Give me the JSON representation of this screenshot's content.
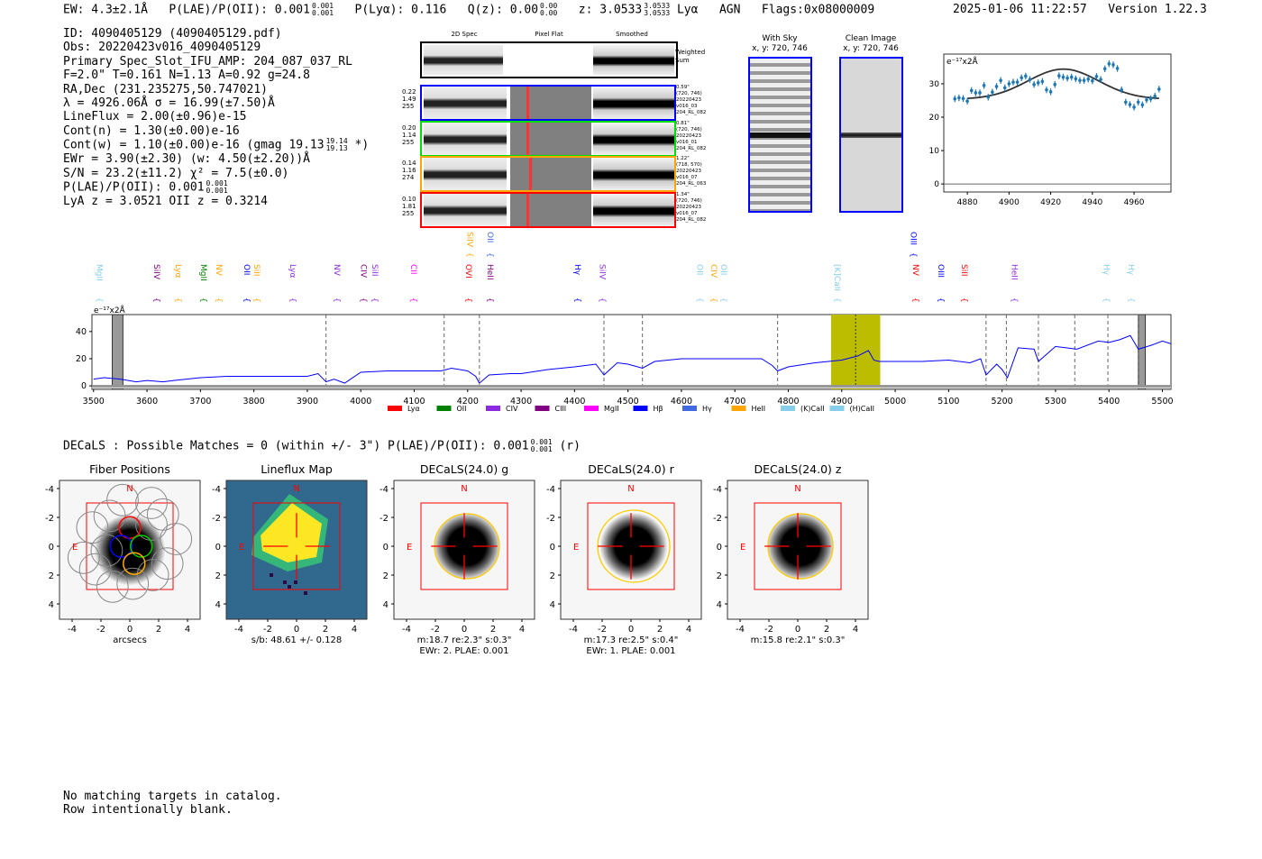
{
  "header": {
    "ew": "EW: 4.3±2.1Å",
    "plae_label": "P(LAE)/P(OII): 0.001",
    "plae_hi": "0.001",
    "plae_lo": "0.001",
    "plya": "P(Lyα): 0.116",
    "qz": "Q(z): 0.00",
    "qz_hi": "0.00",
    "qz_lo": "0.00",
    "z": "z: 3.0533",
    "z_hi": "3.0533",
    "z_lo": "3.0533",
    "line": "Lyα",
    "agn": "AGN",
    "flags": "Flags:0x08000009",
    "datetime": "2025-01-06 11:22:57",
    "version": "Version 1.22.3"
  },
  "info": {
    "lines": [
      "ID: 4090405129 (4090405129.pdf)",
      "Obs: 20220423v016_4090405129",
      "Primary Spec_Slot_IFU_AMP: 204_087_037_RL",
      "F=2.0\"  T=0.161  N=1.13  A=0.92  g=24.8",
      "RA,Dec (231.235275,50.747021)",
      "λ = 4926.06Å   σ = 16.99(±7.50)Å",
      "LineFlux = 2.00(±0.96)e-15",
      "Cont(n) = 1.30(±0.00)e-16"
    ],
    "contw": "Cont(w) = 1.10(±0.00)e-16 (gmag 19.13",
    "contw_hi": "19.14",
    "contw_lo": "19.13",
    "contw_end": "*)",
    "lines2": [
      "EWr = 3.90(±2.30)  (w: 4.50(±2.20))Å",
      "S/N = 23.2(±11.2)  χ² = 7.5(±0.0)"
    ],
    "plae": "P(LAE)/P(OII): 0.001",
    "plae_hi": "0.001",
    "plae_lo": "0.001",
    "z": "LyA z = 3.0521   OII z = 0.3214"
  },
  "spec2d": {
    "col_titles": [
      "2D Spec",
      "Pixel Flat",
      "Smoothed"
    ],
    "weighted": "Weighted Sum",
    "rows": [
      {
        "color": "#0000ff",
        "left": [
          "0.22",
          "1.49",
          "255"
        ],
        "right": [
          "0.59\"",
          "(720, 746)",
          "20220423",
          "v016_03",
          "204_RL_082"
        ]
      },
      {
        "color": "#00dd00",
        "left": [
          "0.20",
          "1.14",
          "255"
        ],
        "right": [
          "0.81\"",
          "(720, 746)",
          "20220423",
          "v016_01",
          "204_RL_082"
        ]
      },
      {
        "color": "#ffa500",
        "left": [
          "0.14",
          "1.16",
          "274"
        ],
        "right": [
          "1.22\"",
          "(718, 570)",
          "20220423",
          "v016_07",
          "204_RL_063"
        ]
      },
      {
        "color": "#ff0000",
        "left": [
          "0.10",
          "1.81",
          "255"
        ],
        "right": [
          "1.34\"",
          "(720, 746)",
          "20220423",
          "v016_07",
          "204_RL_082"
        ]
      }
    ]
  },
  "sky": {
    "with_title": "With Sky",
    "with_xy": "x, y: 720, 746",
    "clean_title": "Clean Image",
    "clean_xy": "x, y: 720, 746"
  },
  "chart_data": [
    {
      "type": "scatter",
      "title": "",
      "ylabel": "e⁻¹⁷x2Å",
      "xlim": [
        4868.7,
        4977.7
      ],
      "ylim": [
        -2.4,
        38.9
      ],
      "xticks": [
        4880,
        4900,
        4920,
        4940,
        4960
      ],
      "yticks": [
        0,
        10,
        20,
        30
      ],
      "x_start": 4874,
      "x_step": 2,
      "values": [
        25.5,
        25.8,
        25.6,
        24.8,
        28,
        27.3,
        27.3,
        29.5,
        26,
        27.5,
        29.2,
        31,
        28.8,
        30,
        30.5,
        30.5,
        31.8,
        32.3,
        31.3,
        29.8,
        30.3,
        30.7,
        28.2,
        27.6,
        29.8,
        32.4,
        32,
        31.7,
        32,
        31.5,
        31,
        31,
        31.4,
        30.9,
        32.2,
        31.3,
        34.5,
        36,
        35.7,
        34.6,
        28.2,
        24.5,
        23.8,
        23,
        24.5,
        23.7,
        25.2,
        25.5,
        26.3,
        28.4
      ],
      "fit": {
        "center": 4926.06,
        "sigma": 16.99,
        "amp": 9.0,
        "base": 25.4,
        "range": [
          4880,
          4972
        ]
      }
    },
    {
      "type": "line",
      "ylabel": "e⁻¹⁷x2Å",
      "xlim": [
        3497,
        5516
      ],
      "ylim": [
        -2.6,
        52.5
      ],
      "xticks": [
        3500,
        3600,
        3700,
        3800,
        3900,
        4000,
        4100,
        4200,
        4300,
        4400,
        4500,
        4600,
        4700,
        4800,
        4900,
        5000,
        5100,
        5200,
        5300,
        5400,
        5500
      ],
      "yticks": [
        0,
        20,
        40
      ],
      "x": [
        3500,
        3520,
        3550,
        3580,
        3600,
        3630,
        3650,
        3700,
        3750,
        3800,
        3850,
        3900,
        3920,
        3935,
        3950,
        3970,
        4000,
        4050,
        4100,
        4150,
        4170,
        4200,
        4215,
        4222,
        4240,
        4280,
        4300,
        4350,
        4400,
        4440,
        4455,
        4480,
        4500,
        4527,
        4550,
        4600,
        4650,
        4700,
        4750,
        4770,
        4780,
        4800,
        4850,
        4900,
        4930,
        4950,
        4960,
        4970,
        5000,
        5050,
        5100,
        5140,
        5160,
        5170,
        5190,
        5200,
        5210,
        5230,
        5260,
        5268,
        5300,
        5340,
        5380,
        5400,
        5420,
        5440,
        5455,
        5480,
        5500,
        5516
      ],
      "values": [
        5,
        6,
        5,
        3,
        4,
        3,
        4,
        6,
        7,
        7,
        7,
        7,
        9,
        3,
        5,
        2,
        10,
        11,
        11,
        11,
        13,
        11,
        7,
        2,
        8,
        9,
        9,
        12,
        14,
        16,
        8,
        17,
        16,
        13,
        18,
        20,
        20,
        20,
        20,
        15,
        11,
        14,
        17,
        19,
        22,
        26,
        19,
        18,
        18,
        18,
        19,
        17,
        20,
        8,
        16,
        12,
        6,
        28,
        27,
        18,
        29,
        27,
        33,
        32,
        34,
        37,
        27,
        30,
        33,
        31
      ],
      "highlight": [
        4880,
        4972
      ],
      "masked": [
        [
          3535,
          3555
        ],
        [
          5455,
          5468
        ]
      ],
      "dashed": [
        3935,
        4156,
        4222,
        4455,
        4527,
        4780,
        5170,
        5208,
        5268,
        5336,
        5398,
        5455
      ],
      "dotted": [
        4926
      ]
    }
  ],
  "lines_labels": [
    {
      "n": "MgII",
      "w": 3505,
      "c": "#87ceeb",
      "r": 0
    },
    {
      "n": "SiIV",
      "w": 3612,
      "c": "#800080",
      "r": 0
    },
    {
      "n": "Lyα",
      "w": 3652,
      "c": "#ffa500",
      "r": 0
    },
    {
      "n": "MgII",
      "w": 3699,
      "c": "#008000",
      "r": 0
    },
    {
      "n": "NV",
      "w": 3728,
      "c": "#ffa500",
      "r": 0
    },
    {
      "n": "OII",
      "w": 3780,
      "c": "#0000ff",
      "r": 0
    },
    {
      "n": "SiII",
      "w": 3797,
      "c": "#ffa500",
      "r": 0
    },
    {
      "n": "Lyα",
      "w": 3866,
      "c": "#8a2be2",
      "r": 0
    },
    {
      "n": "NV",
      "w": 3949,
      "c": "#8a2be2",
      "r": 0
    },
    {
      "n": "CIV",
      "w": 3999,
      "c": "#800080",
      "r": 0
    },
    {
      "n": "SiII",
      "w": 4020,
      "c": "#8a2be2",
      "r": 0
    },
    {
      "n": "CII",
      "w": 4092,
      "c": "#ff00ff",
      "r": 0
    },
    {
      "n": "OVI",
      "w": 4195,
      "c": "#ff0000",
      "r": 0
    },
    {
      "n": "HeII",
      "w": 4236,
      "c": "#800080",
      "r": 0
    },
    {
      "n": "Hγ",
      "w": 4399,
      "c": "#0000ff",
      "r": 0
    },
    {
      "n": "SiIV",
      "w": 4446,
      "c": "#8a2be2",
      "r": 0
    },
    {
      "n": "OII",
      "w": 4628,
      "c": "#87ceeb",
      "r": 0
    },
    {
      "n": "CIV",
      "w": 4654,
      "c": "#ffa500",
      "r": 0
    },
    {
      "n": "OII",
      "w": 4672,
      "c": "#87ceeb",
      "r": 0
    },
    {
      "n": "[K]CaII",
      "w": 4885,
      "c": "#87ceeb",
      "r": 0
    },
    {
      "n": "NV",
      "w": 5032,
      "c": "#ff0000",
      "r": 0
    },
    {
      "n": "OIII",
      "w": 5079,
      "c": "#0000ff",
      "r": 0
    },
    {
      "n": "SiII",
      "w": 5123,
      "c": "#ff0000",
      "r": 0
    },
    {
      "n": "HeII",
      "w": 5217,
      "c": "#8a2be2",
      "r": 0
    },
    {
      "n": "Hγ",
      "w": 5389,
      "c": "#87ceeb",
      "r": 0
    },
    {
      "n": "Hγ",
      "w": 5435,
      "c": "#87ceeb",
      "r": 0
    },
    {
      "n": "SiIV",
      "w": 4198,
      "c": "#ffa500",
      "r": 1
    },
    {
      "n": "OII",
      "w": 4236,
      "c": "#4169e1",
      "r": 1
    },
    {
      "n": "OIII",
      "w": 5028,
      "c": "#0000ff",
      "r": 1
    }
  ],
  "legend": [
    {
      "n": "Lyα",
      "c": "#ff0000"
    },
    {
      "n": "OII",
      "c": "#008000"
    },
    {
      "n": "CIV",
      "c": "#8a2be2"
    },
    {
      "n": "CIII",
      "c": "#800080"
    },
    {
      "n": "MgII",
      "c": "#ff00ff"
    },
    {
      "n": "Hβ",
      "c": "#0000ff"
    },
    {
      "n": "Hγ",
      "c": "#4169e1"
    },
    {
      "n": "HeII",
      "c": "#ffa500"
    },
    {
      "n": "(K)CaII",
      "c": "#87ceeb"
    },
    {
      "n": "(H)CaII",
      "c": "#87ceeb"
    }
  ],
  "decals": {
    "summary": "DECaLS : Possible Matches = 0 (within +/- 3\")  P(LAE)/P(OII): 0.001",
    "summary_hi": "0.001",
    "summary_lo": "0.001",
    "summary_end": "(r)",
    "panels": [
      {
        "title": "Fiber Positions",
        "caption1": "arcsecs",
        "caption2": ""
      },
      {
        "title": "Lineflux Map",
        "caption1": "s/b: 48.61 +/- 0.128",
        "caption2": ""
      },
      {
        "title": "DECaLS(24.0) g",
        "caption1": "m:18.7  re:2.3\"  s:0.3\"",
        "caption2": "EWr: 2, PLAE: 0.001"
      },
      {
        "title": "DECaLS(24.0) r",
        "caption1": "m:17.3  re:2.5\"  s:0.4\"",
        "caption2": "EWr: 1, PLAE: 0.001"
      },
      {
        "title": "DECaLS(24.0) z",
        "caption1": "m:15.8  re:2.1\"  s:0.3\"",
        "caption2": ""
      }
    ],
    "north": "N",
    "east": "E",
    "ticks": [
      "-4",
      "-2",
      "0",
      "2",
      "4"
    ]
  },
  "footer": [
    "No matching targets in catalog.",
    "Row intentionally blank."
  ]
}
